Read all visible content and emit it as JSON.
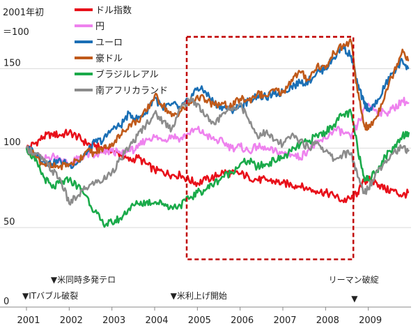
{
  "chart_data": {
    "type": "line",
    "ylabel_lines": [
      "2001年初",
      "＝100"
    ],
    "ylim": [
      0,
      180
    ],
    "yticks": [
      0,
      50,
      100,
      150
    ],
    "xlim": [
      2001.0,
      2010.0
    ],
    "xticks": [
      2001,
      2002,
      2003,
      2004,
      2005,
      2006,
      2007,
      2008,
      2009
    ],
    "grid": "horizontal",
    "legend_position": "top-left",
    "highlight_box": {
      "x_range": [
        2004.75,
        2008.65
      ],
      "y_range": [
        30,
        170
      ],
      "color": "#c00000",
      "style": "dashed"
    },
    "series": [
      {
        "name": "ドル指数",
        "color": "#e8101a",
        "points": [
          [
            2001.0,
            100
          ],
          [
            2001.2,
            103
          ],
          [
            2001.4,
            107
          ],
          [
            2001.6,
            109
          ],
          [
            2001.8,
            108
          ],
          [
            2002.0,
            110
          ],
          [
            2002.2,
            107
          ],
          [
            2002.4,
            103
          ],
          [
            2002.6,
            101
          ],
          [
            2002.8,
            100
          ],
          [
            2003.0,
            98
          ],
          [
            2003.2,
            96
          ],
          [
            2003.4,
            92
          ],
          [
            2003.6,
            94
          ],
          [
            2003.8,
            90
          ],
          [
            2004.0,
            86
          ],
          [
            2004.2,
            85
          ],
          [
            2004.4,
            83
          ],
          [
            2004.6,
            83
          ],
          [
            2004.8,
            80
          ],
          [
            2005.0,
            78
          ],
          [
            2005.2,
            80
          ],
          [
            2005.4,
            82
          ],
          [
            2005.6,
            85
          ],
          [
            2005.8,
            84
          ],
          [
            2006.0,
            84
          ],
          [
            2006.2,
            82
          ],
          [
            2006.4,
            80
          ],
          [
            2006.6,
            80
          ],
          [
            2006.8,
            79
          ],
          [
            2007.0,
            78
          ],
          [
            2007.2,
            77
          ],
          [
            2007.4,
            76
          ],
          [
            2007.6,
            74
          ],
          [
            2007.8,
            73
          ],
          [
            2008.0,
            72
          ],
          [
            2008.2,
            70
          ],
          [
            2008.4,
            67
          ],
          [
            2008.6,
            68
          ],
          [
            2008.75,
            72
          ],
          [
            2008.9,
            79
          ],
          [
            2009.0,
            80
          ],
          [
            2009.2,
            78
          ],
          [
            2009.4,
            74
          ],
          [
            2009.6,
            73
          ],
          [
            2009.8,
            70
          ],
          [
            2009.95,
            72
          ]
        ]
      },
      {
        "name": "円",
        "color": "#ee82ee",
        "points": [
          [
            2001.0,
            100
          ],
          [
            2001.2,
            96
          ],
          [
            2001.4,
            93
          ],
          [
            2001.6,
            95
          ],
          [
            2001.8,
            93
          ],
          [
            2002.0,
            90
          ],
          [
            2002.2,
            93
          ],
          [
            2002.4,
            96
          ],
          [
            2002.6,
            95
          ],
          [
            2002.8,
            97
          ],
          [
            2003.0,
            98
          ],
          [
            2003.2,
            97
          ],
          [
            2003.4,
            98
          ],
          [
            2003.6,
            100
          ],
          [
            2003.8,
            106
          ],
          [
            2004.0,
            107
          ],
          [
            2004.2,
            105
          ],
          [
            2004.4,
            108
          ],
          [
            2004.6,
            106
          ],
          [
            2004.8,
            109
          ],
          [
            2005.0,
            112
          ],
          [
            2005.2,
            108
          ],
          [
            2005.4,
            105
          ],
          [
            2005.6,
            104
          ],
          [
            2005.8,
            100
          ],
          [
            2006.0,
            101
          ],
          [
            2006.2,
            98
          ],
          [
            2006.4,
            101
          ],
          [
            2006.6,
            99
          ],
          [
            2006.8,
            98
          ],
          [
            2007.0,
            97
          ],
          [
            2007.2,
            96
          ],
          [
            2007.4,
            94
          ],
          [
            2007.6,
            99
          ],
          [
            2007.8,
            103
          ],
          [
            2008.0,
            106
          ],
          [
            2008.2,
            112
          ],
          [
            2008.4,
            110
          ],
          [
            2008.6,
            106
          ],
          [
            2008.8,
            118
          ],
          [
            2009.0,
            128
          ],
          [
            2009.2,
            123
          ],
          [
            2009.4,
            122
          ],
          [
            2009.6,
            125
          ],
          [
            2009.8,
            130
          ],
          [
            2009.95,
            128
          ]
        ]
      },
      {
        "name": "ユーロ",
        "color": "#1a6fb5",
        "points": [
          [
            2001.0,
            100
          ],
          [
            2001.2,
            97
          ],
          [
            2001.4,
            92
          ],
          [
            2001.6,
            90
          ],
          [
            2001.8,
            92
          ],
          [
            2002.0,
            89
          ],
          [
            2002.2,
            91
          ],
          [
            2002.4,
            96
          ],
          [
            2002.6,
            104
          ],
          [
            2002.8,
            105
          ],
          [
            2003.0,
            112
          ],
          [
            2003.2,
            114
          ],
          [
            2003.4,
            122
          ],
          [
            2003.6,
            118
          ],
          [
            2003.8,
            123
          ],
          [
            2004.0,
            132
          ],
          [
            2004.2,
            124
          ],
          [
            2004.4,
            128
          ],
          [
            2004.6,
            125
          ],
          [
            2004.8,
            130
          ],
          [
            2005.0,
            138
          ],
          [
            2005.2,
            135
          ],
          [
            2005.4,
            128
          ],
          [
            2005.6,
            126
          ],
          [
            2005.8,
            124
          ],
          [
            2006.0,
            126
          ],
          [
            2006.2,
            130
          ],
          [
            2006.4,
            133
          ],
          [
            2006.6,
            132
          ],
          [
            2006.8,
            134
          ],
          [
            2007.0,
            135
          ],
          [
            2007.2,
            139
          ],
          [
            2007.4,
            141
          ],
          [
            2007.6,
            142
          ],
          [
            2007.8,
            148
          ],
          [
            2008.0,
            150
          ],
          [
            2008.2,
            157
          ],
          [
            2008.4,
            164
          ],
          [
            2008.6,
            158
          ],
          [
            2008.75,
            140
          ],
          [
            2008.9,
            128
          ],
          [
            2009.0,
            125
          ],
          [
            2009.2,
            128
          ],
          [
            2009.4,
            140
          ],
          [
            2009.6,
            148
          ],
          [
            2009.8,
            155
          ],
          [
            2009.95,
            150
          ]
        ]
      },
      {
        "name": "豪ドル",
        "color": "#c05a1a",
        "points": [
          [
            2001.0,
            100
          ],
          [
            2001.2,
            95
          ],
          [
            2001.4,
            90
          ],
          [
            2001.6,
            88
          ],
          [
            2001.8,
            89
          ],
          [
            2002.0,
            90
          ],
          [
            2002.2,
            92
          ],
          [
            2002.4,
            98
          ],
          [
            2002.6,
            97
          ],
          [
            2002.8,
            100
          ],
          [
            2003.0,
            103
          ],
          [
            2003.2,
            108
          ],
          [
            2003.4,
            115
          ],
          [
            2003.6,
            117
          ],
          [
            2003.8,
            123
          ],
          [
            2004.0,
            133
          ],
          [
            2004.2,
            127
          ],
          [
            2004.4,
            120
          ],
          [
            2004.6,
            123
          ],
          [
            2004.8,
            127
          ],
          [
            2005.0,
            133
          ],
          [
            2005.2,
            130
          ],
          [
            2005.4,
            127
          ],
          [
            2005.6,
            128
          ],
          [
            2005.8,
            126
          ],
          [
            2006.0,
            131
          ],
          [
            2006.2,
            130
          ],
          [
            2006.4,
            134
          ],
          [
            2006.6,
            133
          ],
          [
            2006.8,
            136
          ],
          [
            2007.0,
            135
          ],
          [
            2007.2,
            143
          ],
          [
            2007.4,
            148
          ],
          [
            2007.6,
            143
          ],
          [
            2007.8,
            152
          ],
          [
            2008.0,
            150
          ],
          [
            2008.2,
            160
          ],
          [
            2008.4,
            164
          ],
          [
            2008.6,
            167
          ],
          [
            2008.75,
            135
          ],
          [
            2008.9,
            115
          ],
          [
            2009.0,
            112
          ],
          [
            2009.2,
            120
          ],
          [
            2009.4,
            135
          ],
          [
            2009.6,
            148
          ],
          [
            2009.8,
            162
          ],
          [
            2009.95,
            155
          ]
        ]
      },
      {
        "name": "ブラジルレアル",
        "color": "#1aaa4a",
        "points": [
          [
            2001.0,
            100
          ],
          [
            2001.2,
            92
          ],
          [
            2001.4,
            82
          ],
          [
            2001.6,
            75
          ],
          [
            2001.8,
            78
          ],
          [
            2002.0,
            80
          ],
          [
            2002.2,
            76
          ],
          [
            2002.4,
            70
          ],
          [
            2002.6,
            60
          ],
          [
            2002.8,
            52
          ],
          [
            2003.0,
            53
          ],
          [
            2003.2,
            56
          ],
          [
            2003.4,
            62
          ],
          [
            2003.6,
            65
          ],
          [
            2003.8,
            66
          ],
          [
            2004.0,
            66
          ],
          [
            2004.2,
            65
          ],
          [
            2004.4,
            63
          ],
          [
            2004.6,
            64
          ],
          [
            2004.8,
            68
          ],
          [
            2005.0,
            72
          ],
          [
            2005.2,
            74
          ],
          [
            2005.4,
            78
          ],
          [
            2005.6,
            82
          ],
          [
            2005.8,
            85
          ],
          [
            2006.0,
            90
          ],
          [
            2006.2,
            92
          ],
          [
            2006.4,
            88
          ],
          [
            2006.6,
            90
          ],
          [
            2006.8,
            92
          ],
          [
            2007.0,
            94
          ],
          [
            2007.2,
            98
          ],
          [
            2007.4,
            102
          ],
          [
            2007.6,
            104
          ],
          [
            2007.8,
            108
          ],
          [
            2008.0,
            110
          ],
          [
            2008.2,
            115
          ],
          [
            2008.4,
            121
          ],
          [
            2008.6,
            122
          ],
          [
            2008.75,
            100
          ],
          [
            2008.9,
            82
          ],
          [
            2009.0,
            80
          ],
          [
            2009.2,
            86
          ],
          [
            2009.4,
            95
          ],
          [
            2009.6,
            100
          ],
          [
            2009.8,
            108
          ],
          [
            2009.95,
            110
          ]
        ]
      },
      {
        "name": "南アフリカランド",
        "color": "#8c8c8c",
        "points": [
          [
            2001.0,
            100
          ],
          [
            2001.2,
            97
          ],
          [
            2001.4,
            92
          ],
          [
            2001.6,
            86
          ],
          [
            2001.8,
            80
          ],
          [
            2002.0,
            65
          ],
          [
            2002.2,
            70
          ],
          [
            2002.4,
            75
          ],
          [
            2002.6,
            78
          ],
          [
            2002.8,
            80
          ],
          [
            2003.0,
            85
          ],
          [
            2003.2,
            93
          ],
          [
            2003.4,
            100
          ],
          [
            2003.6,
            108
          ],
          [
            2003.8,
            115
          ],
          [
            2004.0,
            122
          ],
          [
            2004.2,
            117
          ],
          [
            2004.4,
            112
          ],
          [
            2004.6,
            125
          ],
          [
            2004.8,
            130
          ],
          [
            2005.0,
            128
          ],
          [
            2005.2,
            120
          ],
          [
            2005.4,
            115
          ],
          [
            2005.6,
            122
          ],
          [
            2005.8,
            125
          ],
          [
            2006.0,
            128
          ],
          [
            2006.2,
            118
          ],
          [
            2006.4,
            108
          ],
          [
            2006.6,
            110
          ],
          [
            2006.8,
            105
          ],
          [
            2007.0,
            102
          ],
          [
            2007.2,
            108
          ],
          [
            2007.4,
            105
          ],
          [
            2007.6,
            100
          ],
          [
            2007.8,
            104
          ],
          [
            2008.0,
            98
          ],
          [
            2008.2,
            93
          ],
          [
            2008.4,
            96
          ],
          [
            2008.6,
            97
          ],
          [
            2008.75,
            82
          ],
          [
            2008.9,
            72
          ],
          [
            2009.0,
            75
          ],
          [
            2009.2,
            85
          ],
          [
            2009.4,
            92
          ],
          [
            2009.6,
            98
          ],
          [
            2009.8,
            100
          ],
          [
            2009.95,
            99
          ]
        ]
      }
    ],
    "annotations": [
      {
        "text": "▼ITバブル破裂",
        "x": 2001.0,
        "row": "low"
      },
      {
        "text": "▼米同時多発テロ",
        "x": 2001.7,
        "row": "high"
      },
      {
        "text": "▼米利上げ開始",
        "x": 2004.5,
        "row": "low"
      },
      {
        "text": "リーマン破綻",
        "x": 2008.2,
        "row": "high",
        "marker": "▼",
        "marker_x": 2008.7
      }
    ]
  }
}
